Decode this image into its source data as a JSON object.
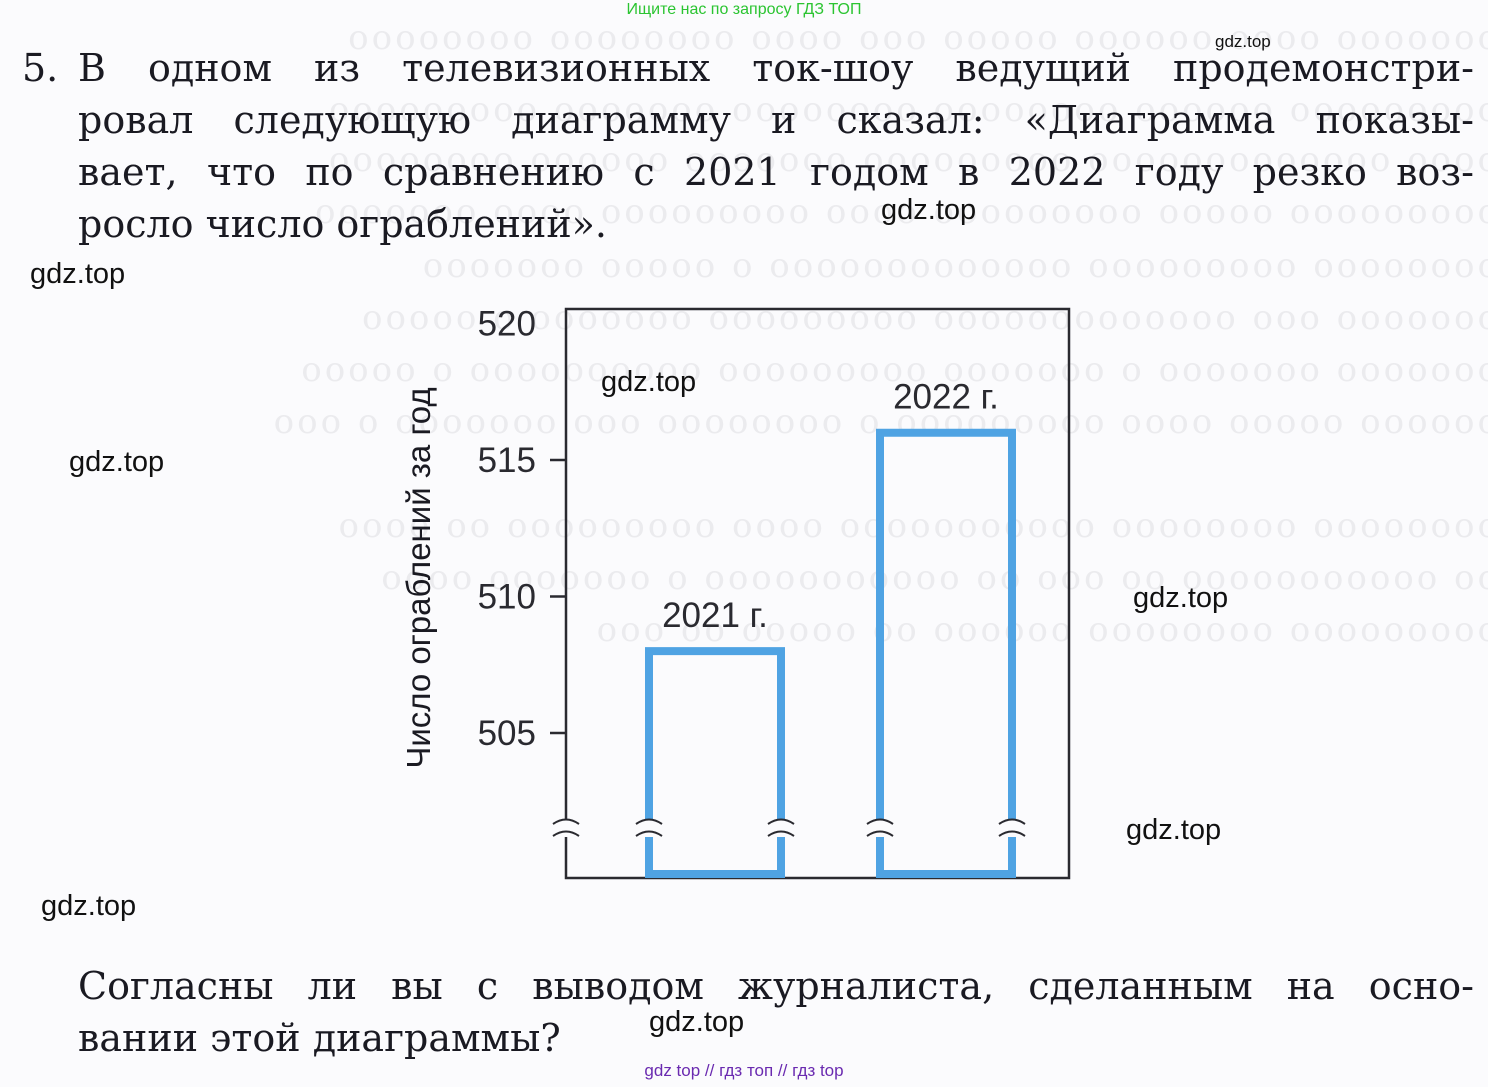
{
  "header": {
    "link_text": "Ищите нас по запросу ГДЗ ТОП"
  },
  "problem": {
    "number": "5.",
    "lines": [
      "В одном из телевизионных ток-шоу ведущий продемонстри-",
      "ровал следующую диаграмму и сказал: «Диаграмма показы-",
      "вает, что по сравнению с 2021 годом в 2022 году резко воз-",
      "росло число ограблений»."
    ]
  },
  "question": {
    "lines": [
      "Согласны ли вы с выводом журналиста, сделанным на осно-",
      "вании этой диаграммы?"
    ]
  },
  "watermarks": {
    "top_right": "gdz.top",
    "w1": "gdz.top",
    "w2": "gdz.top",
    "w3": "gdz.top",
    "w4": "gdz.top",
    "w5": "gdz.top",
    "w6": "gdz.top",
    "w7": "gdz.top",
    "w8": "gdz.top"
  },
  "footer": {
    "link_text": "gdz top  //  гдз топ  //  гдз top"
  },
  "chart_data": {
    "type": "bar",
    "categories": [
      "2021 г.",
      "2022 г."
    ],
    "values": [
      508,
      516
    ],
    "ylabel": "Число ограблений за год",
    "xlabel": "",
    "title": "",
    "yticks": [
      505,
      510,
      515,
      520
    ],
    "ylim": [
      500,
      520
    ],
    "truncated_axis": true,
    "bar_style": "outline",
    "bar_color": "#4fa3e3",
    "grid": false
  }
}
